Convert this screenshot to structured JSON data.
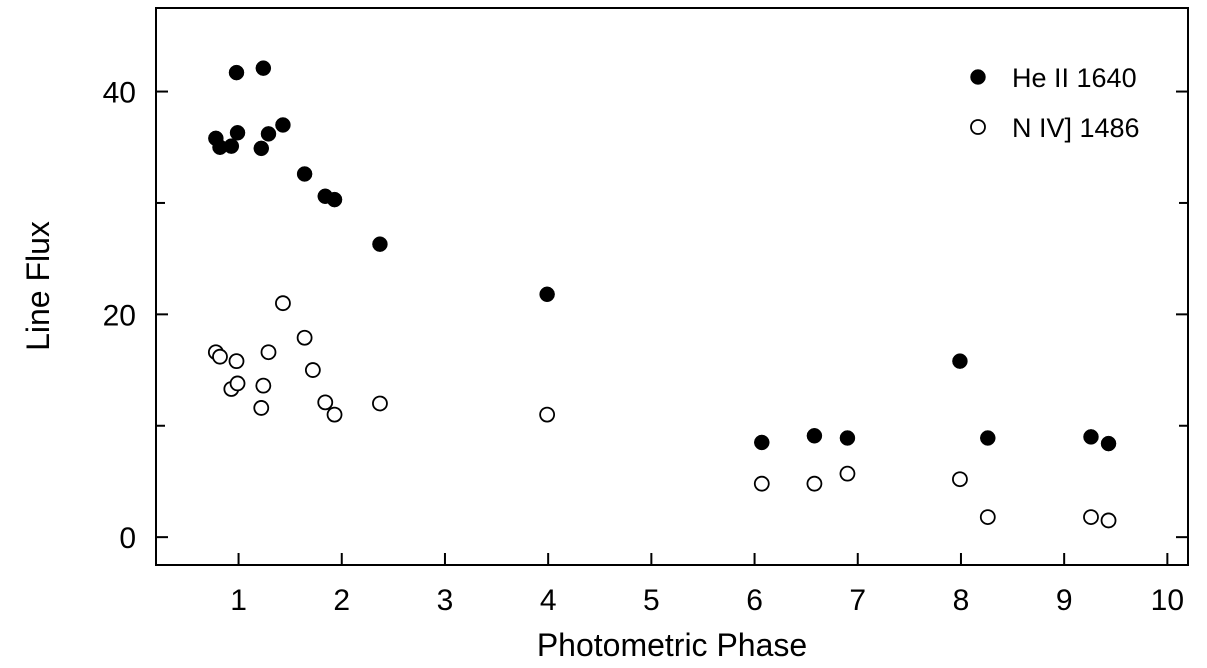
{
  "chart_data": {
    "type": "scatter",
    "title": "",
    "xlabel": "Photometric Phase",
    "ylabel": "Line Flux",
    "xlim": [
      0.2,
      10.2
    ],
    "ylim": [
      -2.5,
      47.5
    ],
    "xticks": [
      1,
      2,
      3,
      4,
      5,
      6,
      7,
      8,
      9,
      10
    ],
    "yticks": [
      0,
      20,
      40
    ],
    "yminor_ticks": [
      10,
      30
    ],
    "grid": false,
    "legend_position": "top-right",
    "series": [
      {
        "name": "He II 1640",
        "marker": "filled-circle",
        "color": "#000000",
        "points": [
          [
            0.78,
            35.8
          ],
          [
            0.82,
            35.0
          ],
          [
            0.93,
            35.1
          ],
          [
            0.98,
            41.7
          ],
          [
            0.99,
            36.3
          ],
          [
            1.22,
            34.9
          ],
          [
            1.24,
            42.1
          ],
          [
            1.29,
            36.2
          ],
          [
            1.43,
            37.0
          ],
          [
            1.64,
            32.6
          ],
          [
            1.84,
            30.6
          ],
          [
            1.93,
            30.3
          ],
          [
            2.37,
            26.3
          ],
          [
            3.99,
            21.8
          ],
          [
            6.07,
            8.5
          ],
          [
            6.58,
            9.1
          ],
          [
            6.9,
            8.9
          ],
          [
            7.99,
            15.8
          ],
          [
            8.26,
            8.9
          ],
          [
            9.26,
            9.0
          ],
          [
            9.43,
            8.4
          ]
        ]
      },
      {
        "name": "N IV] 1486",
        "marker": "open-circle",
        "color": "#000000",
        "points": [
          [
            0.78,
            16.6
          ],
          [
            0.82,
            16.2
          ],
          [
            0.93,
            13.3
          ],
          [
            0.98,
            15.8
          ],
          [
            0.99,
            13.8
          ],
          [
            1.22,
            11.6
          ],
          [
            1.24,
            13.6
          ],
          [
            1.29,
            16.6
          ],
          [
            1.43,
            21.0
          ],
          [
            1.64,
            17.9
          ],
          [
            1.72,
            15.0
          ],
          [
            1.84,
            12.1
          ],
          [
            1.93,
            11.0
          ],
          [
            2.37,
            12.0
          ],
          [
            3.99,
            11.0
          ],
          [
            6.07,
            4.8
          ],
          [
            6.58,
            4.8
          ],
          [
            6.9,
            5.7
          ],
          [
            7.99,
            5.2
          ],
          [
            8.26,
            1.8
          ],
          [
            9.26,
            1.8
          ],
          [
            9.43,
            1.5
          ]
        ]
      }
    ]
  }
}
